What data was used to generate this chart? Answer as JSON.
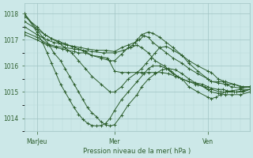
{
  "xlabel": "Pression niveau de la mer( hPa )",
  "xtick_labels": [
    "MarJeu",
    "Mer",
    "Ven"
  ],
  "xtick_positions": [
    0.055,
    0.4,
    0.815
  ],
  "ylim": [
    1013.5,
    1018.4
  ],
  "yticks": [
    1014,
    1015,
    1016,
    1017,
    1018
  ],
  "background_color": "#cce8e8",
  "grid_color_major": "#a0c4c4",
  "grid_color_minor": "#b8d8d8",
  "line_color": "#2d5e2d",
  "series": [
    {
      "x": [
        0.0,
        0.055,
        0.1,
        0.14,
        0.17,
        0.19,
        0.22,
        0.24,
        0.27,
        0.3,
        0.34,
        0.37,
        0.4,
        0.43,
        0.46,
        0.5,
        0.52,
        0.55,
        0.58,
        0.61,
        0.64,
        0.67,
        0.7,
        0.73,
        0.76,
        0.8,
        0.815,
        0.83,
        0.87,
        0.9,
        0.94,
        0.97,
        1.0
      ],
      "y": [
        1017.2,
        1017.0,
        1016.8,
        1016.7,
        1016.65,
        1016.6,
        1016.55,
        1016.5,
        1016.5,
        1016.4,
        1016.35,
        1016.3,
        1015.8,
        1015.75,
        1015.75,
        1015.75,
        1015.75,
        1015.75,
        1015.75,
        1015.75,
        1015.7,
        1015.6,
        1015.5,
        1015.4,
        1015.3,
        1015.2,
        1015.1,
        1015.1,
        1015.0,
        1015.0,
        1015.0,
        1015.05,
        1015.1
      ]
    },
    {
      "x": [
        0.0,
        0.055,
        0.1,
        0.14,
        0.18,
        0.22,
        0.26,
        0.3,
        0.35,
        0.4,
        0.44,
        0.47,
        0.5,
        0.52,
        0.55,
        0.58,
        0.62,
        0.65,
        0.68,
        0.7,
        0.73,
        0.76,
        0.79,
        0.815,
        0.83,
        0.86,
        0.88,
        0.9,
        0.93,
        0.97,
        1.0
      ],
      "y": [
        1017.3,
        1017.1,
        1016.85,
        1016.75,
        1016.7,
        1016.65,
        1016.6,
        1016.55,
        1016.5,
        1016.5,
        1016.6,
        1016.7,
        1016.8,
        1016.7,
        1016.5,
        1016.2,
        1016.0,
        1015.8,
        1015.6,
        1015.5,
        1015.4,
        1015.35,
        1015.3,
        1015.2,
        1015.15,
        1015.1,
        1015.1,
        1015.05,
        1015.0,
        1015.0,
        1015.1
      ]
    },
    {
      "x": [
        0.0,
        0.055,
        0.1,
        0.13,
        0.16,
        0.19,
        0.22,
        0.25,
        0.28,
        0.32,
        0.36,
        0.4,
        0.43,
        0.46,
        0.49,
        0.51,
        0.53,
        0.55,
        0.57,
        0.6,
        0.63,
        0.66,
        0.7,
        0.73,
        0.77,
        0.815,
        0.83,
        0.86,
        0.89,
        0.92,
        0.96,
        1.0
      ],
      "y": [
        1017.5,
        1017.2,
        1017.0,
        1016.9,
        1016.85,
        1016.8,
        1016.75,
        1016.7,
        1016.65,
        1016.6,
        1016.6,
        1016.55,
        1016.7,
        1016.8,
        1016.9,
        1017.0,
        1017.15,
        1017.1,
        1016.9,
        1016.7,
        1016.5,
        1016.3,
        1016.1,
        1015.9,
        1015.7,
        1015.5,
        1015.4,
        1015.35,
        1015.3,
        1015.2,
        1015.15,
        1015.2
      ]
    },
    {
      "x": [
        0.0,
        0.055,
        0.09,
        0.12,
        0.15,
        0.18,
        0.21,
        0.24,
        0.27,
        0.3,
        0.34,
        0.38,
        0.4,
        0.43,
        0.46,
        0.48,
        0.5,
        0.52,
        0.55,
        0.57,
        0.6,
        0.63,
        0.66,
        0.7,
        0.73,
        0.77,
        0.815,
        0.83,
        0.86,
        0.89,
        0.93,
        0.97,
        1.0
      ],
      "y": [
        1017.7,
        1017.4,
        1017.2,
        1017.05,
        1016.95,
        1016.85,
        1016.75,
        1016.65,
        1016.55,
        1016.4,
        1016.3,
        1016.2,
        1016.2,
        1016.45,
        1016.7,
        1016.8,
        1017.0,
        1017.2,
        1017.3,
        1017.25,
        1017.1,
        1016.9,
        1016.7,
        1016.4,
        1016.2,
        1016.0,
        1015.8,
        1015.75,
        1015.5,
        1015.4,
        1015.3,
        1015.2,
        1015.2
      ]
    },
    {
      "x": [
        0.0,
        0.055,
        0.09,
        0.12,
        0.15,
        0.18,
        0.21,
        0.24,
        0.27,
        0.3,
        0.34,
        0.38,
        0.4,
        0.43,
        0.46,
        0.5,
        0.52,
        0.54,
        0.56,
        0.58,
        0.6,
        0.63,
        0.66,
        0.7,
        0.73,
        0.77,
        0.815,
        0.83,
        0.86,
        0.88,
        0.9,
        0.93,
        0.96,
        1.0
      ],
      "y": [
        1017.9,
        1017.5,
        1017.2,
        1017.05,
        1016.9,
        1016.7,
        1016.5,
        1016.2,
        1015.9,
        1015.6,
        1015.3,
        1015.0,
        1015.0,
        1015.2,
        1015.5,
        1015.75,
        1015.9,
        1016.1,
        1016.3,
        1016.5,
        1016.7,
        1016.75,
        1016.6,
        1016.4,
        1016.1,
        1015.8,
        1015.5,
        1015.4,
        1015.4,
        1015.4,
        1015.3,
        1015.3,
        1015.2,
        1015.2
      ]
    },
    {
      "x": [
        0.0,
        0.055,
        0.08,
        0.11,
        0.13,
        0.16,
        0.18,
        0.2,
        0.22,
        0.24,
        0.26,
        0.28,
        0.3,
        0.32,
        0.34,
        0.36,
        0.38,
        0.4,
        0.43,
        0.46,
        0.5,
        0.52,
        0.55,
        0.58,
        0.61,
        0.64,
        0.67,
        0.7,
        0.73,
        0.77,
        0.815,
        0.83,
        0.86,
        0.89,
        0.92,
        0.96,
        1.0
      ],
      "y": [
        1018.0,
        1017.4,
        1017.1,
        1016.8,
        1016.5,
        1016.2,
        1015.9,
        1015.6,
        1015.3,
        1015.0,
        1014.7,
        1014.4,
        1014.2,
        1014.05,
        1013.85,
        1013.75,
        1013.7,
        1013.75,
        1014.1,
        1014.5,
        1014.9,
        1015.2,
        1015.5,
        1015.7,
        1015.85,
        1015.9,
        1015.85,
        1015.7,
        1015.5,
        1015.3,
        1015.1,
        1015.0,
        1014.95,
        1014.9,
        1014.9,
        1014.9,
        1015.0
      ]
    },
    {
      "x": [
        0.0,
        0.055,
        0.08,
        0.1,
        0.12,
        0.14,
        0.16,
        0.18,
        0.2,
        0.22,
        0.24,
        0.26,
        0.28,
        0.3,
        0.32,
        0.34,
        0.36,
        0.38,
        0.4,
        0.43,
        0.46,
        0.5,
        0.53,
        0.55,
        0.57,
        0.6,
        0.63,
        0.66,
        0.7,
        0.73,
        0.77,
        0.815,
        0.83,
        0.85,
        0.87,
        0.89,
        0.92,
        0.96,
        1.0
      ],
      "y": [
        1018.0,
        1017.3,
        1016.9,
        1016.5,
        1016.1,
        1015.7,
        1015.3,
        1015.0,
        1014.7,
        1014.4,
        1014.15,
        1013.95,
        1013.8,
        1013.72,
        1013.7,
        1013.72,
        1013.8,
        1014.0,
        1014.3,
        1014.7,
        1015.0,
        1015.4,
        1015.7,
        1015.9,
        1016.0,
        1016.0,
        1015.9,
        1015.7,
        1015.5,
        1015.2,
        1015.0,
        1014.8,
        1014.75,
        1014.8,
        1014.9,
        1015.0,
        1015.05,
        1015.1,
        1015.1
      ]
    }
  ]
}
